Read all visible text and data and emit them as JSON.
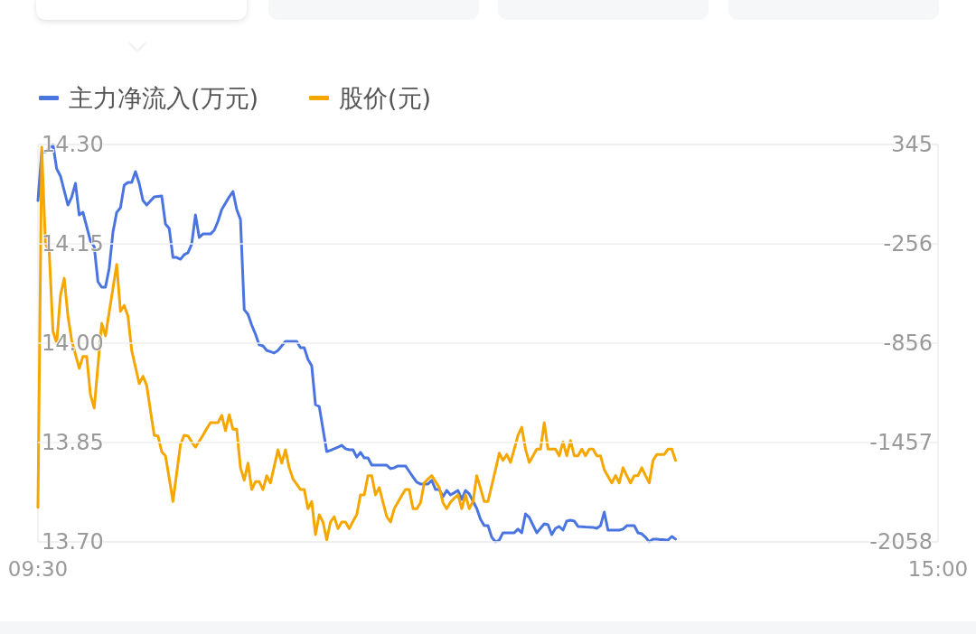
{
  "chart_data": {
    "type": "line",
    "legend": "top left",
    "grid": "y",
    "marker": "none",
    "categories": [
      "09:30",
      null,
      null,
      null,
      null,
      null,
      null,
      null,
      null,
      null,
      null,
      null,
      null,
      null,
      null,
      null,
      null,
      null,
      null,
      null,
      null,
      null,
      null,
      null,
      null,
      null,
      null,
      null,
      null,
      null,
      null,
      null,
      null,
      null,
      null,
      null,
      null,
      null,
      null,
      null,
      null,
      null,
      null,
      null,
      null,
      null,
      null,
      null,
      null,
      null,
      null,
      null,
      null,
      null,
      null,
      null,
      null,
      null,
      null,
      null,
      null,
      null,
      null,
      null,
      null,
      null,
      null,
      null,
      null,
      null,
      null,
      null,
      null,
      null,
      null,
      null,
      null,
      null,
      null,
      null,
      null,
      null,
      null,
      null,
      null,
      null,
      null,
      null,
      null,
      null,
      null,
      null,
      null,
      null,
      null,
      null,
      null,
      null,
      null,
      null,
      null,
      null,
      null,
      null,
      null,
      null,
      null,
      null,
      null,
      null,
      null,
      null,
      null,
      null,
      null,
      null,
      null,
      null,
      null,
      null,
      null,
      null,
      null,
      null,
      null,
      null,
      null,
      null,
      null,
      null,
      null,
      null,
      null,
      null,
      null,
      null,
      null,
      null,
      null,
      null,
      null,
      null,
      null,
      null,
      null,
      null,
      null,
      null,
      null,
      null,
      null,
      null,
      null,
      null,
      null,
      null,
      null,
      null,
      null,
      null,
      null,
      null,
      null,
      null,
      null,
      null,
      null,
      null,
      null,
      null,
      null,
      null,
      null,
      null,
      null,
      null,
      null,
      null,
      null,
      null,
      null,
      null,
      null,
      null,
      null,
      null,
      null,
      null,
      null,
      null,
      null,
      null,
      null,
      null,
      null,
      null,
      null,
      null,
      null,
      null,
      null,
      null,
      null,
      null,
      null,
      null,
      null,
      null,
      null,
      null,
      null,
      null,
      null,
      null,
      null,
      null,
      null,
      null,
      null,
      null,
      null,
      null,
      null,
      null,
      null,
      null,
      null,
      null,
      null,
      null,
      null,
      null,
      null,
      null,
      null,
      null,
      null,
      null,
      null,
      null,
      "15:00"
    ],
    "ylim": [
      13.7,
      14.3
    ],
    "yticks": [
      {
        "value": 13.7,
        "label": "13.70"
      },
      {
        "value": 13.85,
        "label": "13.85"
      },
      {
        "value": 14.0,
        "label": "14.00"
      },
      {
        "value": 14.15,
        "label": "14.15"
      },
      {
        "value": 14.3,
        "label": "14.30"
      }
    ],
    "y2lim": [
      -2058,
      345
    ],
    "y2ticks": [
      -2058,
      {
        "value": -1457.25,
        "label": "-1457"
      },
      {
        "value": -856.5,
        "label": "-856"
      },
      {
        "value": -255.75,
        "label": "-256"
      },
      345
    ],
    "series": [
      {
        "name": "主力净流入(万元)",
        "color": "#4a74e0",
        "axis": "y2",
        "values": [
          6,
          301,
          301,
          323,
          345,
          198,
          154,
          66,
          -21,
          28,
          110,
          -81,
          -65,
          -152,
          -239,
          -272,
          -485,
          -518,
          -518,
          -403,
          -185,
          -65,
          -37,
          99,
          116,
          116,
          181,
          110,
          6,
          -21,
          4,
          28,
          31,
          34,
          -136,
          -163,
          -338,
          -338,
          -349,
          -321,
          -310,
          -256,
          -81,
          -217,
          -196,
          -196,
          -196,
          -174,
          -119,
          -48,
          -10,
          28,
          61,
          -48,
          -108,
          -654,
          -682,
          -747,
          -802,
          -867,
          -873,
          -900,
          -908,
          -916,
          -900,
          -873,
          -845,
          -845,
          -845,
          -845,
          -884,
          -884,
          -955,
          -993,
          -1228,
          -1239,
          -1375,
          -1512,
          -1504,
          -1495,
          -1485,
          -1474,
          -1495,
          -1501,
          -1501,
          -1545,
          -1517,
          -1550,
          -1550,
          -1594,
          -1594,
          -1594,
          -1594,
          -1594,
          -1615,
          -1610,
          -1599,
          -1599,
          -1599,
          -1632,
          -1665,
          -1697,
          -1708,
          -1708,
          -1708,
          -1686,
          -1741,
          -1741,
          -1785,
          -1747,
          -1774,
          -1761,
          -1747,
          -1801,
          -1747,
          -1768,
          -1812,
          -1856,
          -1921,
          -1960,
          -1960,
          -2030,
          -2058,
          -2047,
          -2003,
          -2003,
          -2003,
          -2003,
          -1981,
          -2003,
          -1889,
          -1910,
          -1957,
          -2003,
          -1976,
          -1949,
          -1954,
          -2014,
          -1976,
          -1965,
          -1987,
          -1932,
          -1927,
          -1932,
          -1965,
          -1966,
          -1968,
          -1969,
          -1970,
          -1976,
          -1960,
          -1878,
          -1987,
          -1987,
          -1987,
          -1987,
          -1981,
          -1960,
          -1960,
          -1960,
          -2003,
          -2009,
          -2030,
          -2058,
          -2041,
          -2042,
          -2044,
          -2045,
          -2047,
          -2025,
          -2041,
          null,
          null,
          null,
          null,
          null,
          null,
          null,
          null,
          null,
          null,
          null,
          null,
          null,
          null,
          null,
          null,
          null,
          null,
          null,
          null,
          null,
          null,
          null,
          null,
          null,
          null,
          null,
          null,
          null,
          null,
          null,
          null,
          null,
          null,
          null,
          null,
          null,
          null,
          null,
          null,
          null,
          null,
          null,
          null,
          null,
          null,
          null,
          null,
          null,
          null,
          null,
          null,
          null,
          null,
          null,
          null,
          null,
          null,
          null,
          null,
          null,
          null,
          null,
          null,
          null,
          null,
          null,
          null,
          null,
          null
        ]
      },
      {
        "name": "股价(元)",
        "color": "#f5a700",
        "axis": "y",
        "values": [
          13.752,
          14.296,
          14.15,
          14.139,
          14.018,
          14.0,
          14.072,
          14.098,
          14.041,
          14.004,
          13.983,
          13.962,
          13.98,
          13.98,
          13.922,
          13.902,
          13.966,
          14.03,
          14.011,
          14.047,
          14.083,
          14.119,
          14.048,
          14.057,
          14.041,
          13.989,
          13.964,
          13.939,
          13.95,
          13.936,
          13.898,
          13.861,
          13.86,
          13.836,
          13.83,
          13.796,
          13.761,
          13.804,
          13.847,
          13.861,
          13.86,
          13.851,
          13.843,
          13.852,
          13.861,
          13.871,
          13.88,
          13.88,
          13.88,
          13.891,
          13.868,
          13.892,
          13.87,
          13.87,
          13.812,
          13.793,
          13.819,
          13.779,
          13.791,
          13.791,
          13.779,
          13.8,
          13.789,
          13.814,
          13.839,
          13.819,
          13.839,
          13.812,
          13.795,
          13.787,
          13.779,
          13.779,
          13.75,
          13.761,
          13.711,
          13.741,
          13.73,
          13.703,
          13.73,
          13.738,
          13.72,
          13.73,
          13.73,
          13.72,
          13.731,
          13.741,
          13.771,
          13.771,
          13.8,
          13.8,
          13.771,
          13.782,
          13.76,
          13.738,
          13.73,
          13.75,
          13.76,
          13.77,
          13.779,
          13.779,
          13.75,
          13.75,
          13.759,
          13.789,
          13.795,
          13.8,
          13.791,
          13.782,
          13.759,
          13.75,
          13.76,
          13.766,
          13.771,
          13.75,
          13.771,
          13.75,
          13.761,
          13.8,
          13.781,
          13.761,
          13.761,
          13.785,
          13.809,
          13.834,
          13.823,
          13.832,
          13.82,
          13.84,
          13.861,
          13.873,
          13.84,
          13.82,
          13.83,
          13.84,
          13.84,
          13.88,
          13.84,
          13.84,
          13.84,
          13.83,
          13.851,
          13.83,
          13.853,
          13.83,
          13.83,
          13.84,
          13.83,
          13.84,
          13.84,
          13.83,
          13.83,
          13.809,
          13.799,
          13.789,
          13.8,
          13.789,
          13.812,
          13.8,
          13.789,
          13.8,
          13.8,
          13.812,
          13.8,
          13.789,
          13.823,
          13.832,
          13.832,
          13.832,
          13.84,
          13.84,
          13.823,
          null,
          null,
          null,
          null,
          null,
          null,
          null,
          null,
          null,
          null,
          null,
          null,
          null,
          null,
          null,
          null,
          null,
          null,
          null,
          null,
          null,
          null,
          null,
          null,
          null,
          null,
          null,
          null,
          null,
          null,
          null,
          null,
          null,
          null,
          null,
          null,
          null,
          null,
          null,
          null,
          null,
          null,
          null,
          null,
          null,
          null,
          null,
          null,
          null,
          null,
          null,
          null,
          null,
          null,
          null,
          null,
          null,
          null,
          null,
          null,
          null,
          null,
          null,
          null,
          null,
          null,
          null,
          null,
          null,
          null
        ]
      }
    ]
  }
}
